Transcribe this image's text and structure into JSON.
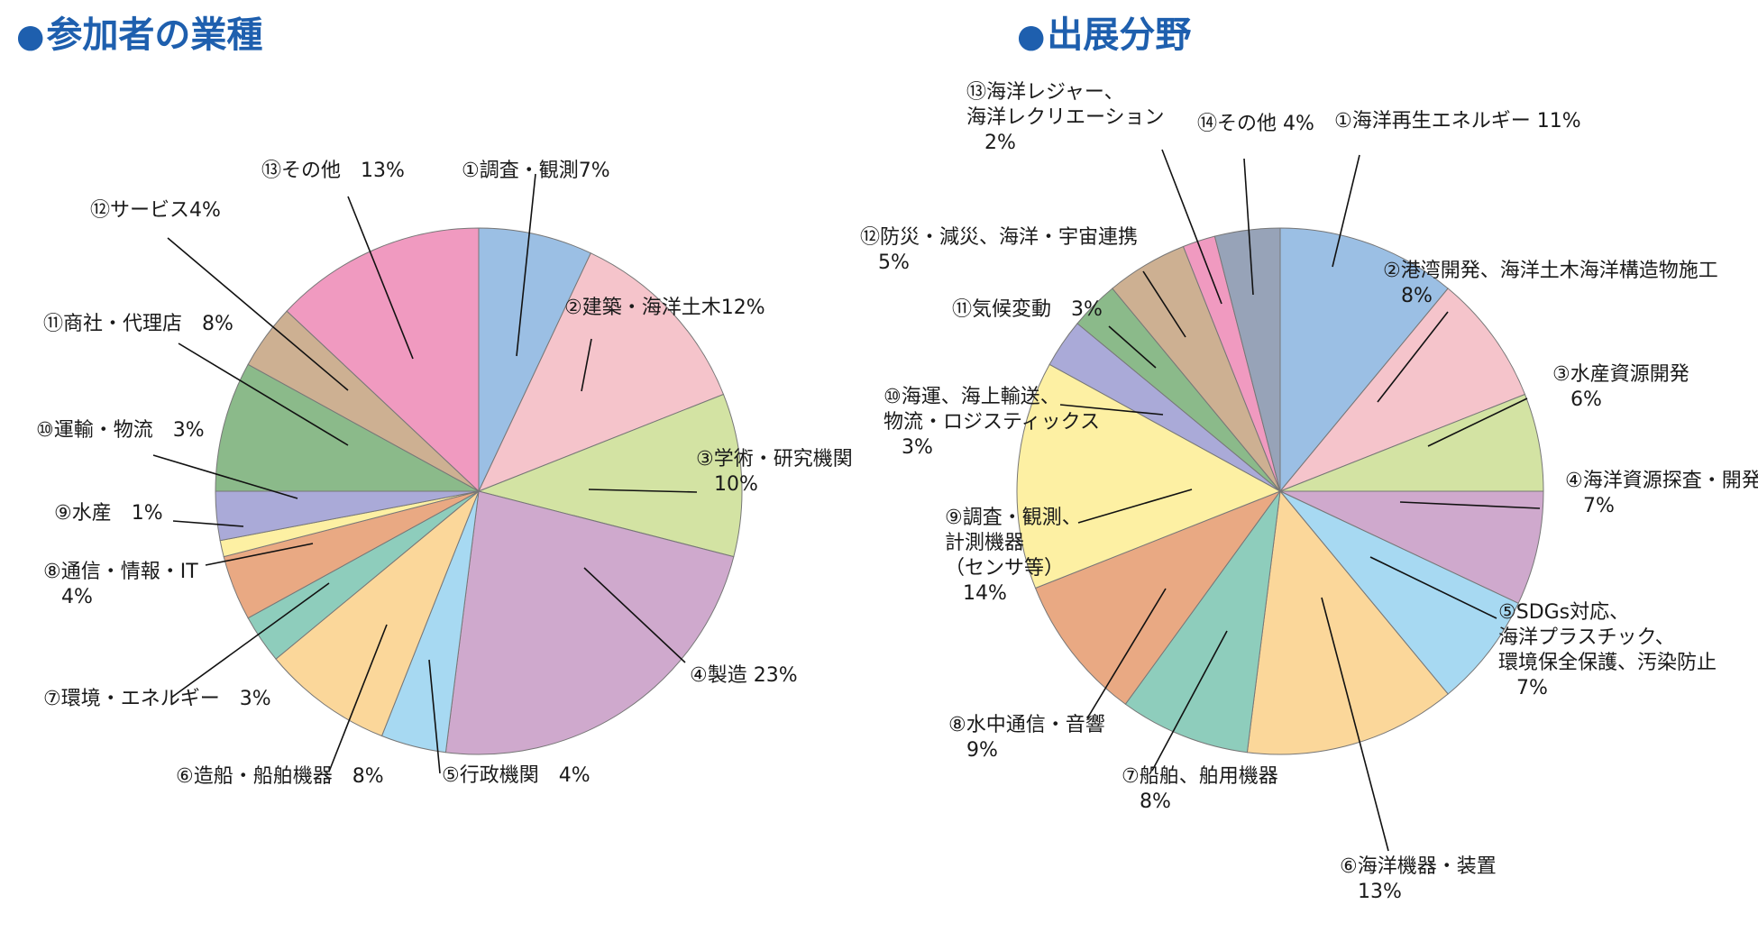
{
  "titles": {
    "bullet": "●",
    "left": "参加者の業種",
    "right": "出展分野"
  },
  "chart_data": [
    {
      "type": "pie",
      "title": "参加者の業種",
      "unit": "%",
      "slices": [
        {
          "label": "①調査・観測7%",
          "value": 7,
          "color": "#9bbfe4"
        },
        {
          "label": "②建築・海洋土木12%",
          "value": 12,
          "color": "#f5c4cb"
        },
        {
          "label": "③学術・研究機関 10%",
          "value": 10,
          "color": "#d3e3a3"
        },
        {
          "label": "④製造 23%",
          "value": 23,
          "color": "#cfa9cd"
        },
        {
          "label": "⑤行政機関 4%",
          "value": 4,
          "color": "#a7d9f2"
        },
        {
          "label": "⑥造船・船舶機器 8%",
          "value": 8,
          "color": "#fbd79a"
        },
        {
          "label": "⑦環境・エネルギー 3%",
          "value": 3,
          "color": "#8ecdbc"
        },
        {
          "label": "⑧通信・情報・IT 4%",
          "value": 4,
          "color": "#e9a983"
        },
        {
          "label": "⑨水産 1%",
          "value": 1,
          "color": "#fdf0a3"
        },
        {
          "label": "⑩運輸・物流 3%",
          "value": 3,
          "color": "#aaaad8"
        },
        {
          "label": "⑪商社・代理店 8%",
          "value": 8,
          "color": "#8bba8a"
        },
        {
          "label": "⑫サービス4%",
          "value": 4,
          "color": "#cdb092"
        },
        {
          "label": "⑬その他 13%",
          "value": 13,
          "color": "#f09ac0"
        }
      ]
    },
    {
      "type": "pie",
      "title": "出展分野",
      "unit": "%",
      "slices": [
        {
          "label": "①海洋再生エネルギー 11%",
          "value": 11,
          "color": "#9bbfe4"
        },
        {
          "label": "②港湾開発、海洋土木海洋構造物施工 8%",
          "value": 8,
          "color": "#f5c4cb"
        },
        {
          "label": "③水産資源開発 6%",
          "value": 6,
          "color": "#d3e3a3"
        },
        {
          "label": "④海洋資源探査・開発 7%",
          "value": 7,
          "color": "#cfa9cd"
        },
        {
          "label": "⑤SDGs対応、海洋プラスチック、環境保全保護、汚染防止 7%",
          "value": 7,
          "color": "#a7d9f2"
        },
        {
          "label": "⑥海洋機器・装置 13%",
          "value": 13,
          "color": "#fbd79a"
        },
        {
          "label": "⑦船舶、舶用機器 8%",
          "value": 8,
          "color": "#8ecdbc"
        },
        {
          "label": "⑧水中通信・音響 9%",
          "value": 9,
          "color": "#e9a983"
        },
        {
          "label": "⑨調査・観測、計測機器（センサ等） 14%",
          "value": 14,
          "color": "#fdf0a3"
        },
        {
          "label": "⑩海運、海上輸送、物流・ロジスティックス 3%",
          "value": 3,
          "color": "#aaaad8"
        },
        {
          "label": "⑪気候変動 3%",
          "value": 3,
          "color": "#8bba8a"
        },
        {
          "label": "⑫防災・減災、海洋・宇宙連携 5%",
          "value": 5,
          "color": "#cdb092"
        },
        {
          "label": "⑬海洋レジャー、海洋レクリエーション 2%",
          "value": 2,
          "color": "#f09ac0"
        },
        {
          "label": "⑭その他 4%",
          "value": 4,
          "color": "#97a3b8"
        }
      ]
    }
  ],
  "labels_left": [
    [
      "①調査・観測7%"
    ],
    [
      "②建築・海洋土木12%"
    ],
    [
      "③学術・研究機関",
      "10%"
    ],
    [
      "④製造 23%"
    ],
    [
      "⑤行政機関　4%"
    ],
    [
      "⑥造船・船舶機器　8%"
    ],
    [
      "⑦環境・エネルギー　3%"
    ],
    [
      "⑧通信・情報・IT",
      "4%"
    ],
    [
      "⑨水産　1%"
    ],
    [
      "⑩運輸・物流　3%"
    ],
    [
      "⑪商社・代理店　8%"
    ],
    [
      "⑫サービス4%"
    ],
    [
      "⑬その他　13%"
    ]
  ],
  "labels_right": [
    [
      "①海洋再生エネルギー 11%"
    ],
    [
      "②港湾開発、海洋土木海洋構造物施工",
      "8%"
    ],
    [
      "③水産資源開発",
      "6%"
    ],
    [
      "④海洋資源探査・開発",
      "7%"
    ],
    [
      "⑤SDGs対応、",
      "海洋プラスチック、",
      "環境保全保護、汚染防止",
      "7%"
    ],
    [
      "⑥海洋機器・装置",
      "13%"
    ],
    [
      "⑦船舶、舶用機器",
      "8%"
    ],
    [
      "⑧水中通信・音響",
      "9%"
    ],
    [
      "⑨調査・観測、",
      "計測機器",
      "（センサ等）",
      "14%"
    ],
    [
      "⑩海運、海上輸送、",
      "物流・ロジスティックス",
      "3%"
    ],
    [
      "⑪気候変動　3%"
    ],
    [
      "⑫防災・減災、海洋・宇宙連携",
      "5%"
    ],
    [
      "⑬海洋レジャー、",
      "海洋レクリエーション",
      "2%"
    ],
    [
      "⑭その他 4%"
    ]
  ]
}
